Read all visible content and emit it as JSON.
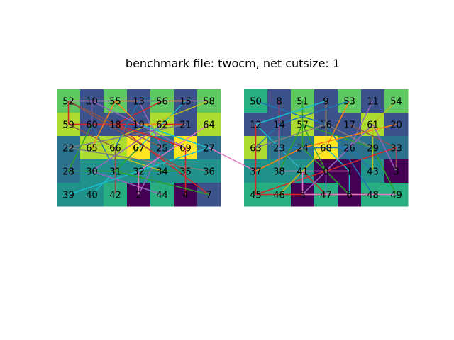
{
  "title": "benchmark file: twocm, net cutsize: 1",
  "palette": {
    "dark": "#440154",
    "indigo": "#3b528b",
    "steel": "#2c728e",
    "teal": "#21918c",
    "sea": "#28ae80",
    "green": "#5ec962",
    "lime": "#addc30",
    "yellow": "#fde725"
  },
  "partitions": [
    {
      "name": "left",
      "cells": [
        [
          {
            "id": "52",
            "c": "green"
          },
          {
            "id": "10",
            "c": "indigo"
          },
          {
            "id": "55",
            "c": "green"
          },
          {
            "id": "13",
            "c": "indigo"
          },
          {
            "id": "56",
            "c": "green"
          },
          {
            "id": "15",
            "c": "indigo"
          },
          {
            "id": "58",
            "c": "green"
          }
        ],
        [
          {
            "id": "59",
            "c": "lime"
          },
          {
            "id": "60",
            "c": "indigo"
          },
          {
            "id": "18",
            "c": "indigo"
          },
          {
            "id": "19",
            "c": "indigo"
          },
          {
            "id": "62",
            "c": "lime"
          },
          {
            "id": "21",
            "c": "indigo"
          },
          {
            "id": "64",
            "c": "lime"
          }
        ],
        [
          {
            "id": "22",
            "c": "steel"
          },
          {
            "id": "65",
            "c": "lime"
          },
          {
            "id": "66",
            "c": "lime"
          },
          {
            "id": "67",
            "c": "yellow"
          },
          {
            "id": "25",
            "c": "steel"
          },
          {
            "id": "69",
            "c": "yellow"
          },
          {
            "id": "27",
            "c": "steel"
          }
        ],
        [
          {
            "id": "28",
            "c": "steel"
          },
          {
            "id": "30",
            "c": "teal"
          },
          {
            "id": "31",
            "c": "teal"
          },
          {
            "id": "32",
            "c": "teal"
          },
          {
            "id": "34",
            "c": "teal"
          },
          {
            "id": "35",
            "c": "teal"
          },
          {
            "id": "36",
            "c": "teal"
          }
        ],
        [
          {
            "id": "39",
            "c": "teal"
          },
          {
            "id": "40",
            "c": "teal"
          },
          {
            "id": "42",
            "c": "sea"
          },
          {
            "id": "2",
            "c": "dark"
          },
          {
            "id": "44",
            "c": "sea"
          },
          {
            "id": "4",
            "c": "dark"
          },
          {
            "id": "7",
            "c": "indigo"
          }
        ]
      ]
    },
    {
      "name": "right",
      "cells": [
        [
          {
            "id": "50",
            "c": "sea"
          },
          {
            "id": "8",
            "c": "indigo"
          },
          {
            "id": "51",
            "c": "green"
          },
          {
            "id": "9",
            "c": "indigo"
          },
          {
            "id": "53",
            "c": "green"
          },
          {
            "id": "11",
            "c": "indigo"
          },
          {
            "id": "54",
            "c": "green"
          }
        ],
        [
          {
            "id": "12",
            "c": "indigo"
          },
          {
            "id": "14",
            "c": "indigo"
          },
          {
            "id": "57",
            "c": "lime"
          },
          {
            "id": "16",
            "c": "indigo"
          },
          {
            "id": "17",
            "c": "indigo"
          },
          {
            "id": "61",
            "c": "lime"
          },
          {
            "id": "20",
            "c": "indigo"
          }
        ],
        [
          {
            "id": "63",
            "c": "lime"
          },
          {
            "id": "23",
            "c": "steel"
          },
          {
            "id": "24",
            "c": "steel"
          },
          {
            "id": "68",
            "c": "yellow"
          },
          {
            "id": "26",
            "c": "steel"
          },
          {
            "id": "29",
            "c": "steel"
          },
          {
            "id": "33",
            "c": "steel"
          }
        ],
        [
          {
            "id": "37",
            "c": "teal"
          },
          {
            "id": "38",
            "c": "teal"
          },
          {
            "id": "41",
            "c": "teal"
          },
          {
            "id": "0",
            "c": "dark"
          },
          {
            "id": "1",
            "c": "dark"
          },
          {
            "id": "43",
            "c": "teal"
          },
          {
            "id": "3",
            "c": "dark"
          }
        ],
        [
          {
            "id": "45",
            "c": "sea"
          },
          {
            "id": "46",
            "c": "sea"
          },
          {
            "id": "5",
            "c": "dark"
          },
          {
            "id": "47",
            "c": "sea"
          },
          {
            "id": "6",
            "c": "dark"
          },
          {
            "id": "48",
            "c": "sea"
          },
          {
            "id": "49",
            "c": "sea"
          }
        ]
      ]
    }
  ],
  "net_colors": [
    "#1f77b4",
    "#ff7f0e",
    "#2ca02c",
    "#d62728",
    "#9467bd",
    "#8c564b",
    "#e377c2",
    "#7f7f7f",
    "#bcbd22",
    "#17becf"
  ],
  "nets": [
    {
      "n": [
        "52",
        "10",
        "58"
      ],
      "c": 6
    },
    {
      "n": [
        "52",
        "59",
        "21"
      ],
      "c": 3
    },
    {
      "n": [
        "10",
        "60",
        "31"
      ],
      "c": 0
    },
    {
      "n": [
        "55",
        "19",
        "62"
      ],
      "c": 1
    },
    {
      "n": [
        "13",
        "25",
        "2"
      ],
      "c": 4
    },
    {
      "n": [
        "56",
        "18",
        "7"
      ],
      "c": 3
    },
    {
      "n": [
        "15",
        "67",
        "40"
      ],
      "c": 9
    },
    {
      "n": [
        "58",
        "65",
        "34"
      ],
      "c": 8
    },
    {
      "n": [
        "59",
        "66",
        "42"
      ],
      "c": 5
    },
    {
      "n": [
        "60",
        "28",
        "35"
      ],
      "c": 2
    },
    {
      "n": [
        "62",
        "30",
        "44"
      ],
      "c": 4
    },
    {
      "n": [
        "21",
        "22",
        "36"
      ],
      "c": 7
    },
    {
      "n": [
        "64",
        "32",
        "2"
      ],
      "c": 6
    },
    {
      "n": [
        "18",
        "69",
        "4"
      ],
      "c": 3
    },
    {
      "n": [
        "19",
        "27",
        "39"
      ],
      "c": 9
    },
    {
      "n": [
        "65",
        "55",
        "15"
      ],
      "c": 1
    },
    {
      "n": [
        "66",
        "13",
        "56"
      ],
      "c": 0
    },
    {
      "n": [
        "67",
        "31",
        "7"
      ],
      "c": 2
    },
    {
      "n": [
        "69",
        "10",
        "60"
      ],
      "c": 4
    },
    {
      "n": [
        "25",
        "52",
        "35"
      ],
      "c": 5
    },
    {
      "n": [
        "27",
        "37"
      ],
      "c": 6
    },
    {
      "n": [
        "50",
        "16",
        "48"
      ],
      "c": 0
    },
    {
      "n": [
        "8",
        "23",
        "47"
      ],
      "c": 3
    },
    {
      "n": [
        "51",
        "24",
        "6"
      ],
      "c": 2
    },
    {
      "n": [
        "9",
        "12",
        "41"
      ],
      "c": 9
    },
    {
      "n": [
        "53",
        "68",
        "46"
      ],
      "c": 1
    },
    {
      "n": [
        "11",
        "26",
        "5"
      ],
      "c": 4
    },
    {
      "n": [
        "54",
        "61",
        "43"
      ],
      "c": 8
    },
    {
      "n": [
        "12",
        "63",
        "45"
      ],
      "c": 3
    },
    {
      "n": [
        "14",
        "38",
        "1"
      ],
      "c": 6
    },
    {
      "n": [
        "57",
        "29",
        "49"
      ],
      "c": 2
    },
    {
      "n": [
        "17",
        "33",
        "3"
      ],
      "c": 5
    },
    {
      "n": [
        "61",
        "0",
        "47"
      ],
      "c": 4
    },
    {
      "n": [
        "20",
        "24",
        "37"
      ],
      "c": 1
    },
    {
      "n": [
        "23",
        "26",
        "43"
      ],
      "c": 0
    },
    {
      "n": [
        "68",
        "1",
        "6"
      ],
      "c": 9
    },
    {
      "n": [
        "29",
        "16",
        "63"
      ],
      "c": 7
    },
    {
      "n": [
        "33",
        "45",
        "48"
      ],
      "c": 3
    },
    {
      "n": [
        "38",
        "57",
        "0"
      ],
      "c": 2
    },
    {
      "n": [
        "41",
        "5",
        "49"
      ],
      "c": 6
    },
    {
      "n": [
        "3",
        "61",
        "26"
      ],
      "c": 4
    },
    {
      "n": [
        "46",
        "68",
        "9"
      ],
      "c": 8
    },
    {
      "n": [
        "53",
        "14",
        "63"
      ],
      "c": 0
    }
  ]
}
